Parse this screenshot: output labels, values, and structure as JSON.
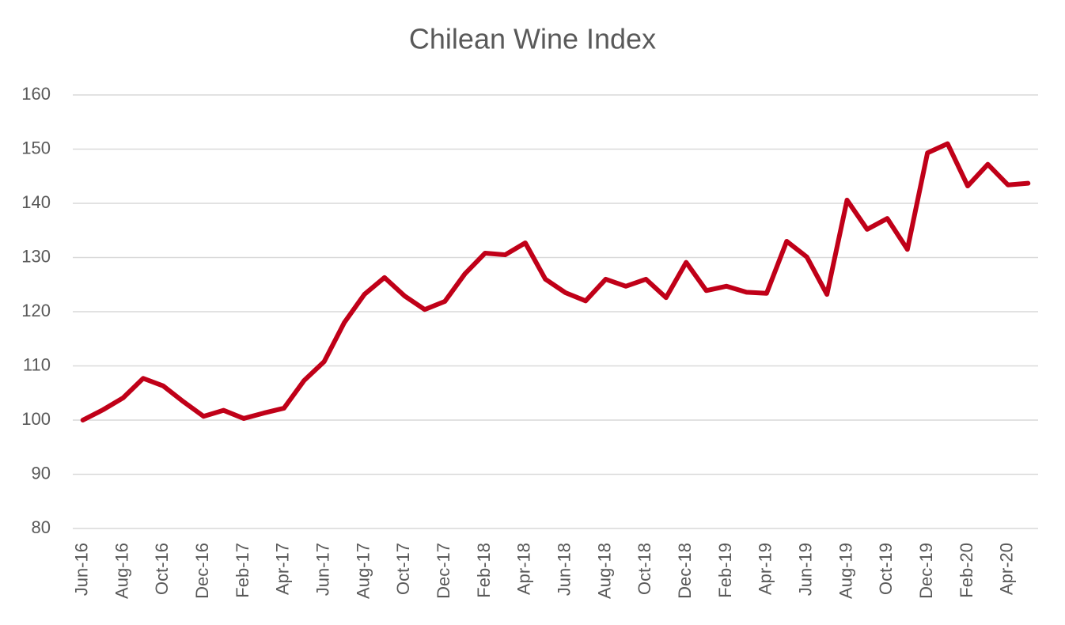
{
  "chart_data": {
    "type": "line",
    "title": "Chilean Wine Index",
    "categories": [
      "Jun-16",
      null,
      "Aug-16",
      null,
      "Oct-16",
      null,
      "Dec-16",
      null,
      "Feb-17",
      null,
      "Apr-17",
      null,
      "Jun-17",
      null,
      "Aug-17",
      null,
      "Oct-17",
      null,
      "Dec-17",
      null,
      "Feb-18",
      null,
      "Apr-18",
      null,
      "Jun-18",
      null,
      "Aug-18",
      null,
      "Oct-18",
      null,
      "Dec-18",
      null,
      "Feb-19",
      null,
      "Apr-19",
      null,
      "Jun-19",
      null,
      "Aug-19",
      null,
      "Oct-19",
      null,
      "Dec-19",
      null,
      "Feb-20",
      null,
      "Apr-20",
      null
    ],
    "values": [
      100,
      101.9,
      104.1,
      107.7,
      106.3,
      103.4,
      100.7,
      101.8,
      100.3,
      101.3,
      102.2,
      107.3,
      110.8,
      118.0,
      123.2,
      126.3,
      122.9,
      120.4,
      121.9,
      127.0,
      130.8,
      130.5,
      132.7,
      126.0,
      123.5,
      122.0,
      126.0,
      124.7,
      126.0,
      122.6,
      129.1,
      123.9,
      124.7,
      123.6,
      123.4,
      133.0,
      130.1,
      123.2,
      140.6,
      135.2,
      137.2,
      131.5,
      149.3,
      151.0,
      143.2,
      147.2,
      143.4,
      143.7
    ],
    "color": "#c00018",
    "ylim": [
      80,
      160
    ],
    "yticks": [
      80,
      90,
      100,
      110,
      120,
      130,
      140,
      150,
      160
    ],
    "grid": true
  }
}
